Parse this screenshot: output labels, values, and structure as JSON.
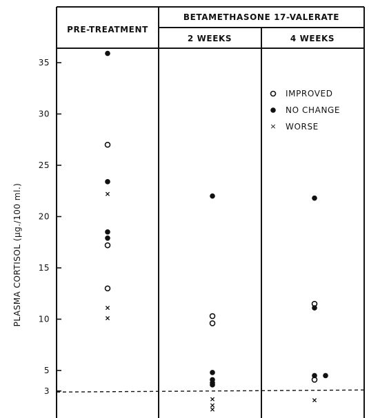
{
  "chart_data": {
    "type": "scatter",
    "title": "",
    "xlabel": "",
    "ylabel": "PLASMA CORTISOL (μg./100 ml.)",
    "header": {
      "group_label": "BETAMETHASONE 17-VALERATE",
      "columns": [
        "PRE-TREATMENT",
        "2 WEEKS",
        "4 WEEKS"
      ]
    },
    "categories": [
      "PRE-TREATMENT",
      "2 WEEKS",
      "4 WEEKS"
    ],
    "y_ticks": [
      "3",
      "5",
      "10",
      "15",
      "20",
      "25",
      "30",
      "35"
    ],
    "ylim": [
      0,
      38
    ],
    "reference_line": {
      "y": 3,
      "style": "dashed"
    },
    "legend": {
      "placement": "top-right",
      "entries": [
        {
          "symbol": "open-circle",
          "label": "IMPROVED"
        },
        {
          "symbol": "filled-circle",
          "label": "NO CHANGE"
        },
        {
          "symbol": "cross",
          "label": "WORSE"
        }
      ]
    },
    "series": [
      {
        "name": "IMPROVED",
        "symbol": "open-circle",
        "points": [
          {
            "x": "PRE-TREATMENT",
            "y": 27
          },
          {
            "x": "PRE-TREATMENT",
            "y": 17.2
          },
          {
            "x": "PRE-TREATMENT",
            "y": 13
          },
          {
            "x": "2 WEEKS",
            "y": 10.3
          },
          {
            "x": "2 WEEKS",
            "y": 9.6
          },
          {
            "x": "4 WEEKS",
            "y": 11.5
          },
          {
            "x": "4 WEEKS",
            "y": 4.1
          }
        ]
      },
      {
        "name": "NO CHANGE",
        "symbol": "filled-circle",
        "points": [
          {
            "x": "PRE-TREATMENT",
            "y": 35.9
          },
          {
            "x": "PRE-TREATMENT",
            "y": 23.4
          },
          {
            "x": "PRE-TREATMENT",
            "y": 18.5
          },
          {
            "x": "PRE-TREATMENT",
            "y": 17.9
          },
          {
            "x": "2 WEEKS",
            "y": 22
          },
          {
            "x": "2 WEEKS",
            "y": 4.8
          },
          {
            "x": "2 WEEKS",
            "y": 4.1
          },
          {
            "x": "2 WEEKS",
            "y": 3.8
          },
          {
            "x": "2 WEEKS",
            "y": 3.6
          },
          {
            "x": "4 WEEKS",
            "y": 21.8
          },
          {
            "x": "4 WEEKS",
            "y": 11.1
          },
          {
            "x": "4 WEEKS",
            "y": 4.5
          },
          {
            "x": "4 WEEKS",
            "y": 4.5
          }
        ]
      },
      {
        "name": "WORSE",
        "symbol": "cross",
        "points": [
          {
            "x": "PRE-TREATMENT",
            "y": 22.2
          },
          {
            "x": "PRE-TREATMENT",
            "y": 11.1
          },
          {
            "x": "PRE-TREATMENT",
            "y": 10.1
          },
          {
            "x": "2 WEEKS",
            "y": 2.2
          },
          {
            "x": "2 WEEKS",
            "y": 1.6
          },
          {
            "x": "2 WEEKS",
            "y": 1.2
          },
          {
            "x": "4 WEEKS",
            "y": 2.1
          }
        ]
      }
    ]
  }
}
